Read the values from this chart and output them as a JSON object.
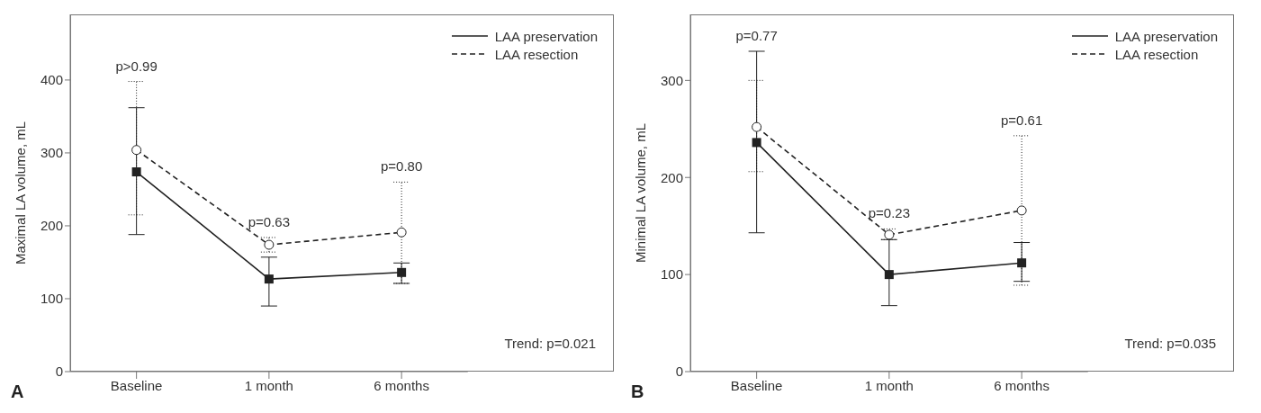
{
  "chart_data": [
    {
      "type": "line",
      "title": "A",
      "ylabel": "Maximal LA volume, mL",
      "categories": [
        "Baseline",
        "1 month",
        "6 months"
      ],
      "ylim": [
        0,
        490
      ],
      "yticks": [
        0,
        100,
        200,
        300,
        400
      ],
      "legend": "top right",
      "series": [
        {
          "name": "LAA preservation",
          "color": "#222222",
          "values": [
            274,
            127,
            136
          ],
          "errors": [
            [
              188,
              362
            ],
            [
              90,
              157
            ],
            [
              121,
              149
            ]
          ],
          "marker": "square",
          "line_style": "solid"
        },
        {
          "name": "LAA resection",
          "color": "#222222",
          "values": [
            304,
            174,
            191
          ],
          "errors": [
            [
              215,
              398
            ],
            [
              164,
              184
            ],
            [
              121,
              260
            ]
          ],
          "marker": "circle",
          "line_style": "dashed"
        }
      ],
      "annotations": [
        "p>0.99",
        "p=0.63",
        "p=0.80",
        "Trend: p=0.021"
      ]
    },
    {
      "type": "line",
      "title": "B",
      "ylabel": "Minimal LA volume, mL",
      "categories": [
        "Baseline",
        "1 month",
        "6 months"
      ],
      "ylim": [
        0,
        368
      ],
      "yticks": [
        0,
        100,
        200,
        300
      ],
      "legend": "top right",
      "series": [
        {
          "name": "LAA preservation",
          "color": "#222222",
          "values": [
            236,
            100,
            112
          ],
          "errors": [
            [
              143,
              330
            ],
            [
              68,
              136
            ],
            [
              93,
              133
            ]
          ],
          "marker": "square",
          "line_style": "solid"
        },
        {
          "name": "LAA resection",
          "color": "#222222",
          "values": [
            252,
            141,
            166
          ],
          "errors": [
            [
              206,
              300
            ],
            [
              136,
              147
            ],
            [
              89,
              243
            ]
          ],
          "marker": "circle",
          "line_style": "dashed"
        }
      ],
      "annotations": [
        "p=0.77",
        "p=0.23",
        "p=0.61",
        "Trend: p=0.035"
      ]
    }
  ]
}
